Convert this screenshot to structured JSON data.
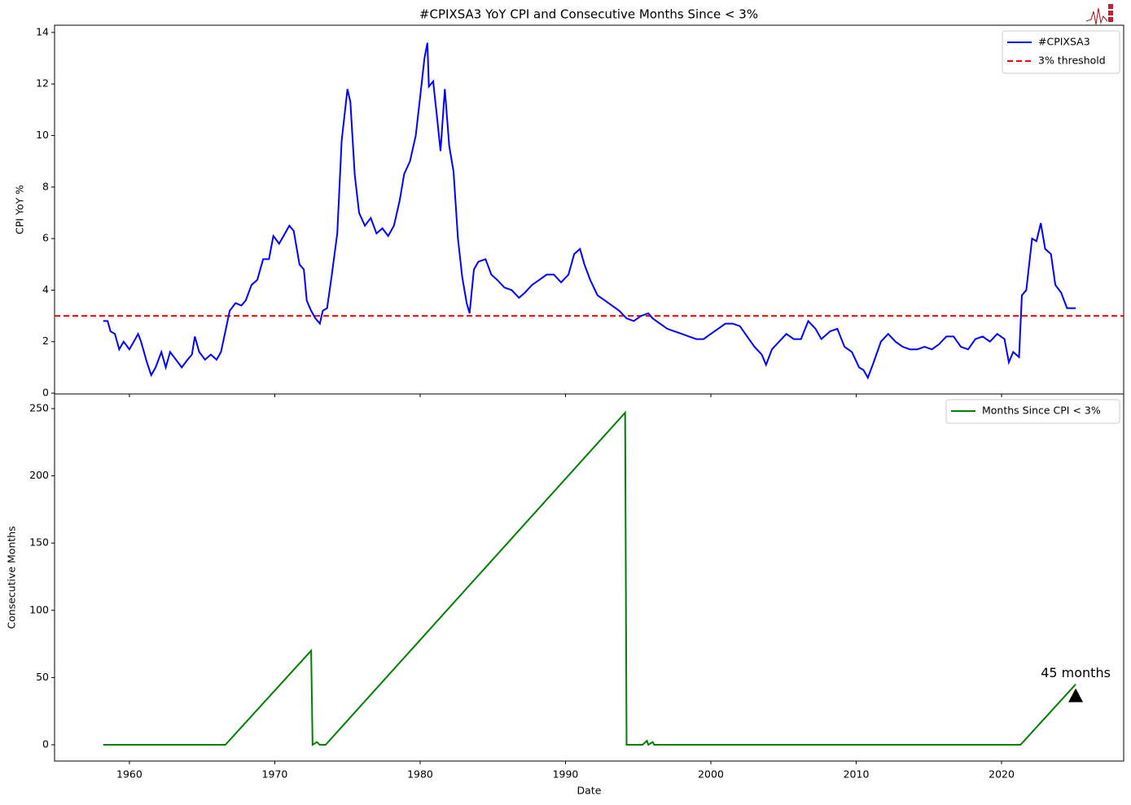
{
  "chart_data": [
    {
      "type": "line",
      "title": "#CPIXSA3 YoY CPI and Consecutive Months Since < 3%",
      "ylabel": "CPI YoY %",
      "xlim": [
        1954.85,
        2028.4
      ],
      "ylim": [
        -0.03,
        14.28
      ],
      "yticks": [
        0,
        2,
        4,
        6,
        8,
        10,
        12,
        14
      ],
      "legend": "upper right",
      "series": [
        {
          "name": "#CPIXSA3",
          "color": "#0000ff",
          "x": [
            1958.2,
            1958.5,
            1958.7,
            1959,
            1959.3,
            1959.6,
            1960,
            1960.3,
            1960.6,
            1960.8,
            1961.2,
            1961.5,
            1961.8,
            1962.2,
            1962.5,
            1962.8,
            1963.2,
            1963.6,
            1964,
            1964.3,
            1964.5,
            1964.8,
            1965.2,
            1965.6,
            1966,
            1966.3,
            1966.6,
            1966.9,
            1967.3,
            1967.7,
            1968,
            1968.4,
            1968.8,
            1969.2,
            1969.6,
            1969.9,
            1970.3,
            1970.7,
            1971,
            1971.3,
            1971.7,
            1972,
            1972.2,
            1972.5,
            1972.8,
            1973.1,
            1973.3,
            1973.6,
            1973.9,
            1974.3,
            1974.6,
            1975,
            1975.2,
            1975.5,
            1975.8,
            1976.2,
            1976.6,
            1977,
            1977.4,
            1977.8,
            1978.2,
            1978.6,
            1978.9,
            1979.3,
            1979.7,
            1980,
            1980.3,
            1980.5,
            1980.6,
            1980.9,
            1981.2,
            1981.4,
            1981.7,
            1982,
            1982.3,
            1982.6,
            1982.9,
            1983.2,
            1983.4,
            1983.7,
            1984,
            1984.5,
            1984.9,
            1985.3,
            1985.8,
            1986.3,
            1986.8,
            1987.2,
            1987.7,
            1988.2,
            1988.7,
            1989.2,
            1989.7,
            1990.2,
            1990.6,
            1991,
            1991.3,
            1991.7,
            1992.2,
            1992.7,
            1993.2,
            1993.7,
            1994.2,
            1994.7,
            1995.2,
            1995.7,
            1996,
            1996.5,
            1997,
            1997.5,
            1998,
            1998.5,
            1999,
            1999.5,
            2000,
            2000.5,
            2001,
            2001.5,
            2002,
            2002.5,
            2003,
            2003.5,
            2003.8,
            2004.2,
            2004.7,
            2005.2,
            2005.7,
            2006.2,
            2006.7,
            2007.2,
            2007.6,
            2008.2,
            2008.7,
            2009.2,
            2009.7,
            2010.2,
            2010.5,
            2010.8,
            2011.2,
            2011.7,
            2012.2,
            2012.7,
            2013.2,
            2013.7,
            2014.2,
            2014.7,
            2015.2,
            2015.7,
            2016.2,
            2016.7,
            2017.2,
            2017.7,
            2018.2,
            2018.7,
            2019.2,
            2019.7,
            2020.2,
            2020.5,
            2020.8,
            2021.2,
            2021.4,
            2021.7,
            2022.1,
            2022.4,
            2022.7,
            2023,
            2023.4,
            2023.7,
            2024.1,
            2024.5,
            2024.9,
            2025.1
          ],
          "values": [
            2.8,
            2.8,
            2.4,
            2.3,
            1.7,
            2.0,
            1.7,
            2.0,
            2.3,
            2.0,
            1.2,
            0.7,
            1.0,
            1.6,
            1.0,
            1.6,
            1.3,
            1.0,
            1.3,
            1.5,
            2.2,
            1.6,
            1.3,
            1.5,
            1.3,
            1.6,
            2.4,
            3.2,
            3.5,
            3.4,
            3.6,
            4.2,
            4.4,
            5.2,
            5.2,
            6.1,
            5.8,
            6.2,
            6.5,
            6.3,
            5.0,
            4.8,
            3.6,
            3.2,
            2.9,
            2.7,
            3.2,
            3.3,
            4.5,
            6.2,
            9.8,
            11.8,
            11.3,
            8.5,
            7.0,
            6.5,
            6.8,
            6.2,
            6.4,
            6.1,
            6.5,
            7.5,
            8.5,
            9.0,
            10.0,
            11.5,
            13.0,
            13.6,
            11.9,
            12.1,
            10.5,
            9.4,
            11.8,
            9.6,
            8.6,
            6.0,
            4.5,
            3.5,
            3.1,
            4.8,
            5.1,
            5.2,
            4.6,
            4.4,
            4.1,
            4.0,
            3.7,
            3.9,
            4.2,
            4.4,
            4.6,
            4.6,
            4.3,
            4.6,
            5.4,
            5.6,
            5.0,
            4.4,
            3.8,
            3.6,
            3.4,
            3.2,
            2.9,
            2.8,
            3.0,
            3.1,
            2.9,
            2.7,
            2.5,
            2.4,
            2.3,
            2.2,
            2.1,
            2.1,
            2.3,
            2.5,
            2.7,
            2.7,
            2.6,
            2.2,
            1.8,
            1.5,
            1.1,
            1.7,
            2.0,
            2.3,
            2.1,
            2.1,
            2.8,
            2.5,
            2.1,
            2.4,
            2.5,
            1.8,
            1.6,
            1.0,
            0.9,
            0.6,
            1.2,
            2.0,
            2.3,
            2.0,
            1.8,
            1.7,
            1.7,
            1.8,
            1.7,
            1.9,
            2.2,
            2.2,
            1.8,
            1.7,
            2.1,
            2.2,
            2.0,
            2.3,
            2.1,
            1.2,
            1.6,
            1.4,
            3.8,
            4.0,
            6.0,
            5.9,
            6.6,
            5.6,
            5.4,
            4.2,
            3.9,
            3.3,
            3.3,
            3.3
          ]
        }
      ],
      "hline": {
        "name": "3% threshold",
        "value": 3,
        "color": "#ff0000"
      }
    },
    {
      "type": "line",
      "xlabel": "Date",
      "ylabel": "Consecutive Months",
      "xlim": [
        1954.85,
        2028.4
      ],
      "xticks": [
        1960,
        1970,
        1980,
        1990,
        2000,
        2010,
        2020
      ],
      "ylim": [
        -12.1,
        260.9
      ],
      "yticks": [
        0,
        50,
        100,
        150,
        200,
        250
      ],
      "legend": "upper right",
      "series": [
        {
          "name": "Months Since CPI < 3%",
          "color": "#008000",
          "x": [
            1958.2,
            1966.6,
            1972.5,
            1972.6,
            1972.9,
            1973.1,
            1973.5,
            1994.1,
            1994.2,
            1995.3,
            1995.6,
            1995.7,
            1996,
            1996.1,
            2021.3,
            2025.1
          ],
          "values": [
            0,
            0,
            70,
            0,
            2,
            0,
            0,
            247,
            0,
            0,
            3,
            0,
            2,
            0,
            0,
            45
          ]
        }
      ],
      "annotation": {
        "text": "45 months",
        "x": 2025.1,
        "y": 45
      }
    }
  ]
}
